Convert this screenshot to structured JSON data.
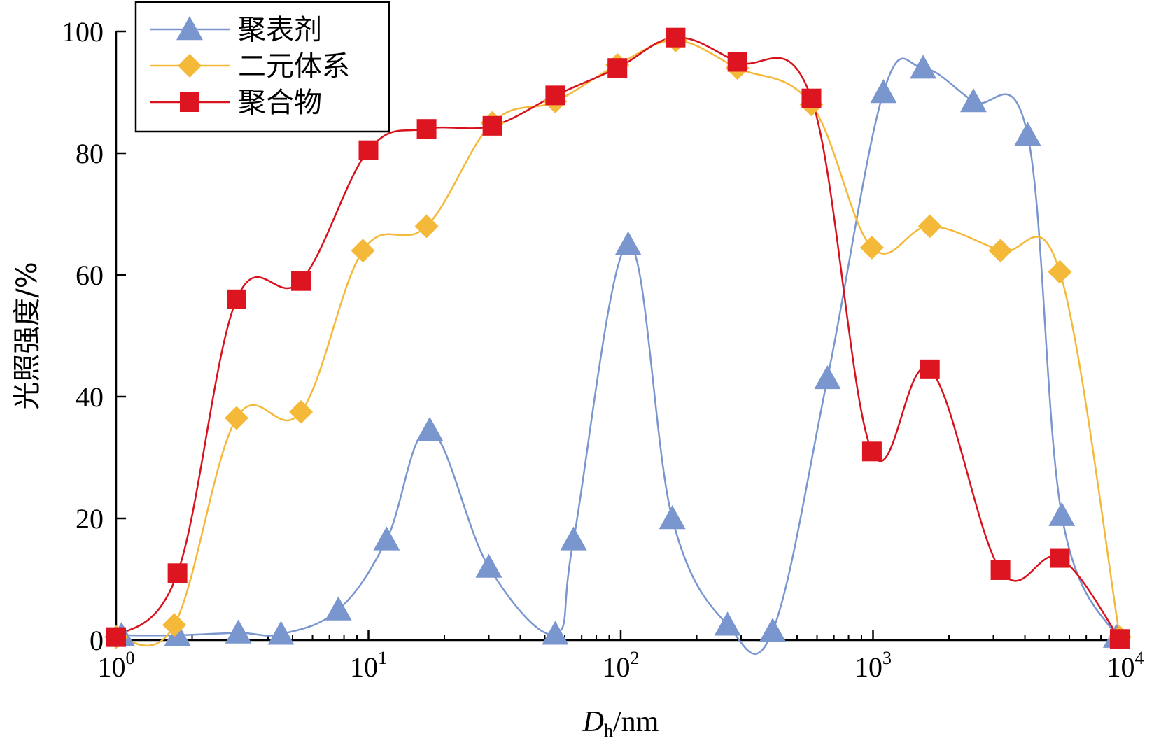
{
  "chart_data": {
    "type": "line",
    "x_scale": "log",
    "xlabel": {
      "main": "D",
      "sub": "h",
      "unit": "/nm"
    },
    "ylabel": "光照强度/%",
    "xlim": [
      1,
      10000
    ],
    "ylim": [
      0,
      100
    ],
    "xticks": [
      {
        "value": 1,
        "base": "10",
        "exp": "0"
      },
      {
        "value": 10,
        "base": "10",
        "exp": "1"
      },
      {
        "value": 100,
        "base": "10",
        "exp": "2"
      },
      {
        "value": 1000,
        "base": "10",
        "exp": "3"
      },
      {
        "value": 10000,
        "base": "10",
        "exp": "4"
      }
    ],
    "yticks": [
      0,
      20,
      40,
      60,
      80,
      100
    ],
    "legend_position": "top-left",
    "grid": false,
    "series": [
      {
        "name": "聚表剂",
        "marker": "triangle",
        "color": "#7a96cf",
        "fill": "#7a96cf",
        "x": [
          1.05,
          1.75,
          3.05,
          4.5,
          7.6,
          11.8,
          17.5,
          30,
          55,
          65,
          107,
          160,
          265,
          400,
          660,
          1100,
          1580,
          2500,
          4100,
          5600,
          9200
        ],
        "y": [
          0.8,
          0.8,
          1.2,
          1.0,
          5.0,
          16.5,
          34.5,
          12.0,
          1.0,
          16.5,
          65.0,
          20.0,
          2.5,
          1.5,
          43.0,
          90.0,
          94.0,
          88.5,
          83.0,
          20.5,
          0.5
        ]
      },
      {
        "name": "二元体系",
        "marker": "diamond",
        "color": "#f5b93a",
        "fill": "#f5b93a",
        "x": [
          1.0,
          1.7,
          3.0,
          5.4,
          9.5,
          17,
          31,
          55,
          97,
          165,
          290,
          570,
          990,
          1680,
          3200,
          5500,
          9500
        ],
        "y": [
          0.5,
          2.5,
          36.5,
          37.5,
          64.0,
          68.0,
          85.0,
          88.5,
          94.5,
          98.5,
          94.0,
          88.0,
          64.5,
          68.0,
          64.0,
          60.5,
          0.5
        ]
      },
      {
        "name": "聚合物",
        "marker": "square",
        "color": "#d8121c",
        "fill": "#dd1520",
        "x": [
          1.0,
          1.75,
          3.0,
          5.4,
          10.0,
          17,
          31,
          55,
          97,
          165,
          290,
          570,
          990,
          1680,
          3200,
          5500,
          9500
        ],
        "y": [
          0.5,
          11.0,
          56.0,
          59.0,
          80.5,
          84.0,
          84.5,
          89.5,
          94.0,
          99.0,
          95.0,
          89.0,
          31.0,
          44.5,
          11.5,
          13.5,
          0.2
        ]
      }
    ]
  }
}
